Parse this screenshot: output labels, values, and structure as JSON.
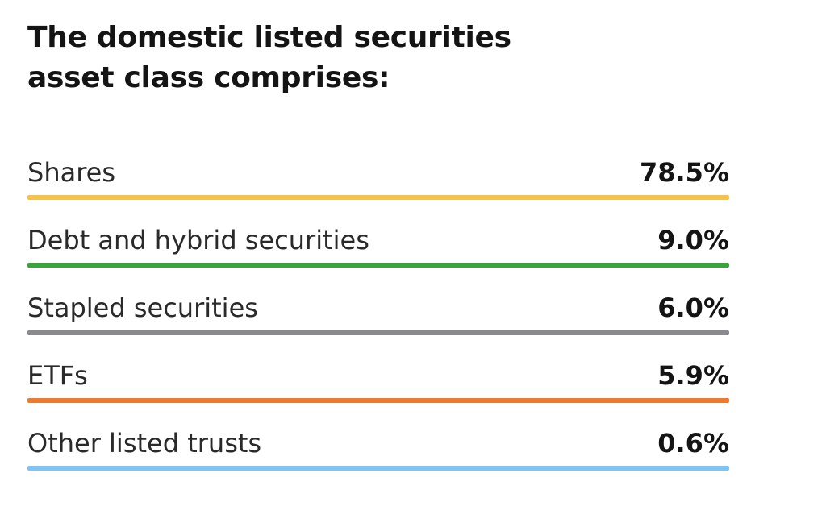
{
  "title": {
    "line1": "The domestic listed securities",
    "line2": "asset class comprises:"
  },
  "rows": [
    {
      "label": "Shares",
      "value": "78.5%",
      "color": "#f5c34a"
    },
    {
      "label": "Debt and hybrid securities",
      "value": "9.0%",
      "color": "#3aa33a"
    },
    {
      "label": "Stapled securities",
      "value": "6.0%",
      "color": "#8a8a8e"
    },
    {
      "label": "ETFs",
      "value": "5.9%",
      "color": "#ee7a2e"
    },
    {
      "label": "Other listed trusts",
      "value": "0.6%",
      "color": "#7fc3f2"
    }
  ]
}
